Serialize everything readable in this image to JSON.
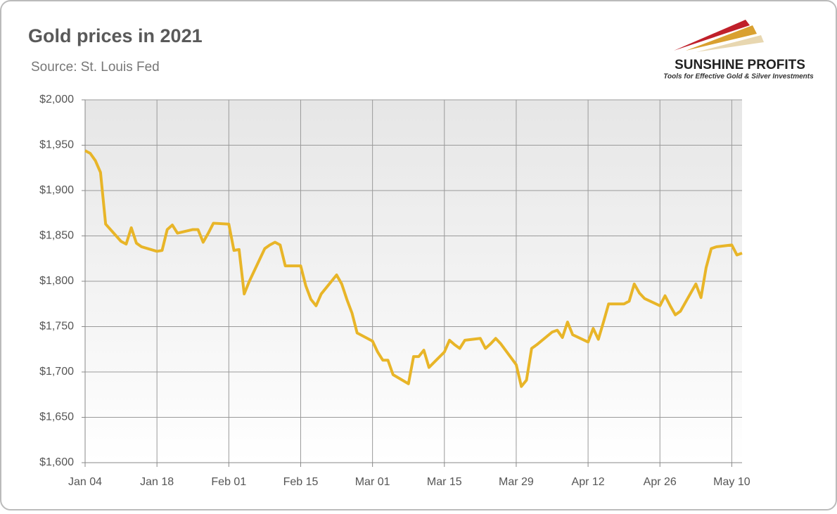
{
  "chart_data": {
    "type": "line",
    "title": "Gold prices in 2021",
    "subtitle": "Source: St. Louis Fed",
    "logo_text": "SUNSHINE PROFITS",
    "logo_tagline": "Tools for Effective Gold & Silver Investments",
    "x": [
      0,
      1,
      2,
      3,
      4,
      7,
      8,
      9,
      10,
      11,
      14,
      15,
      16,
      17,
      18,
      21,
      22,
      23,
      24,
      25,
      28,
      29,
      30,
      31,
      32,
      35,
      36,
      37,
      38,
      39,
      42,
      43,
      44,
      45,
      46,
      49,
      50,
      51,
      52,
      53,
      56,
      57,
      58,
      59,
      60,
      63,
      64,
      65,
      66,
      67,
      70,
      71,
      72,
      73,
      74,
      77,
      78,
      79,
      80,
      81,
      84,
      85,
      86,
      87,
      88,
      91,
      92,
      93,
      94,
      95,
      98,
      99,
      100,
      101,
      102,
      105,
      106,
      107,
      108,
      109,
      112,
      113,
      114,
      115,
      116,
      119,
      120,
      121,
      122,
      123,
      126,
      127,
      128
    ],
    "values": [
      1944,
      1941,
      1933,
      1920,
      1863,
      1844,
      1841,
      1859,
      1842,
      1838,
      1833,
      1834,
      1857,
      1862,
      1853,
      1857,
      1857,
      1843,
      1853,
      1864,
      1863,
      1834,
      1835,
      1786,
      1800,
      1836,
      1840,
      1843,
      1840,
      1817,
      1817,
      1795,
      1780,
      1773,
      1786,
      1807,
      1797,
      1780,
      1765,
      1743,
      1734,
      1722,
      1713,
      1713,
      1697,
      1687,
      1717,
      1717,
      1724,
      1705,
      1722,
      1735,
      1730,
      1726,
      1735,
      1737,
      1726,
      1731,
      1737,
      1731,
      1708,
      1684,
      1691,
      1726,
      1730,
      1744,
      1746,
      1738,
      1755,
      1741,
      1733,
      1748,
      1736,
      1755,
      1775,
      1775,
      1778,
      1797,
      1787,
      1781,
      1773,
      1784,
      1773,
      1763,
      1767,
      1797,
      1782,
      1815,
      1836,
      1838,
      1840,
      1829,
      1831
    ],
    "color": "#e8b528",
    "xlim": [
      0,
      128
    ],
    "xticks": [
      {
        "value": 0,
        "label": "Jan 04"
      },
      {
        "value": 14,
        "label": "Jan 18"
      },
      {
        "value": 28,
        "label": "Feb 01"
      },
      {
        "value": 42,
        "label": "Feb 15"
      },
      {
        "value": 56,
        "label": "Mar 01"
      },
      {
        "value": 70,
        "label": "Mar 15"
      },
      {
        "value": 84,
        "label": "Mar 29"
      },
      {
        "value": 98,
        "label": "Apr 12"
      },
      {
        "value": 112,
        "label": "Apr 26"
      },
      {
        "value": 126,
        "label": "May 10"
      }
    ],
    "ylim": [
      1600,
      2000
    ],
    "yticks": [
      {
        "value": 1600,
        "label": "$1,600"
      },
      {
        "value": 1650,
        "label": "$1,650"
      },
      {
        "value": 1700,
        "label": "$1,700"
      },
      {
        "value": 1750,
        "label": "$1,750"
      },
      {
        "value": 1800,
        "label": "$1,800"
      },
      {
        "value": 1850,
        "label": "$1,850"
      },
      {
        "value": 1900,
        "label": "$1,900"
      },
      {
        "value": 1950,
        "label": "$1,950"
      },
      {
        "value": 2000,
        "label": "$2,000"
      }
    ],
    "grid": true
  }
}
